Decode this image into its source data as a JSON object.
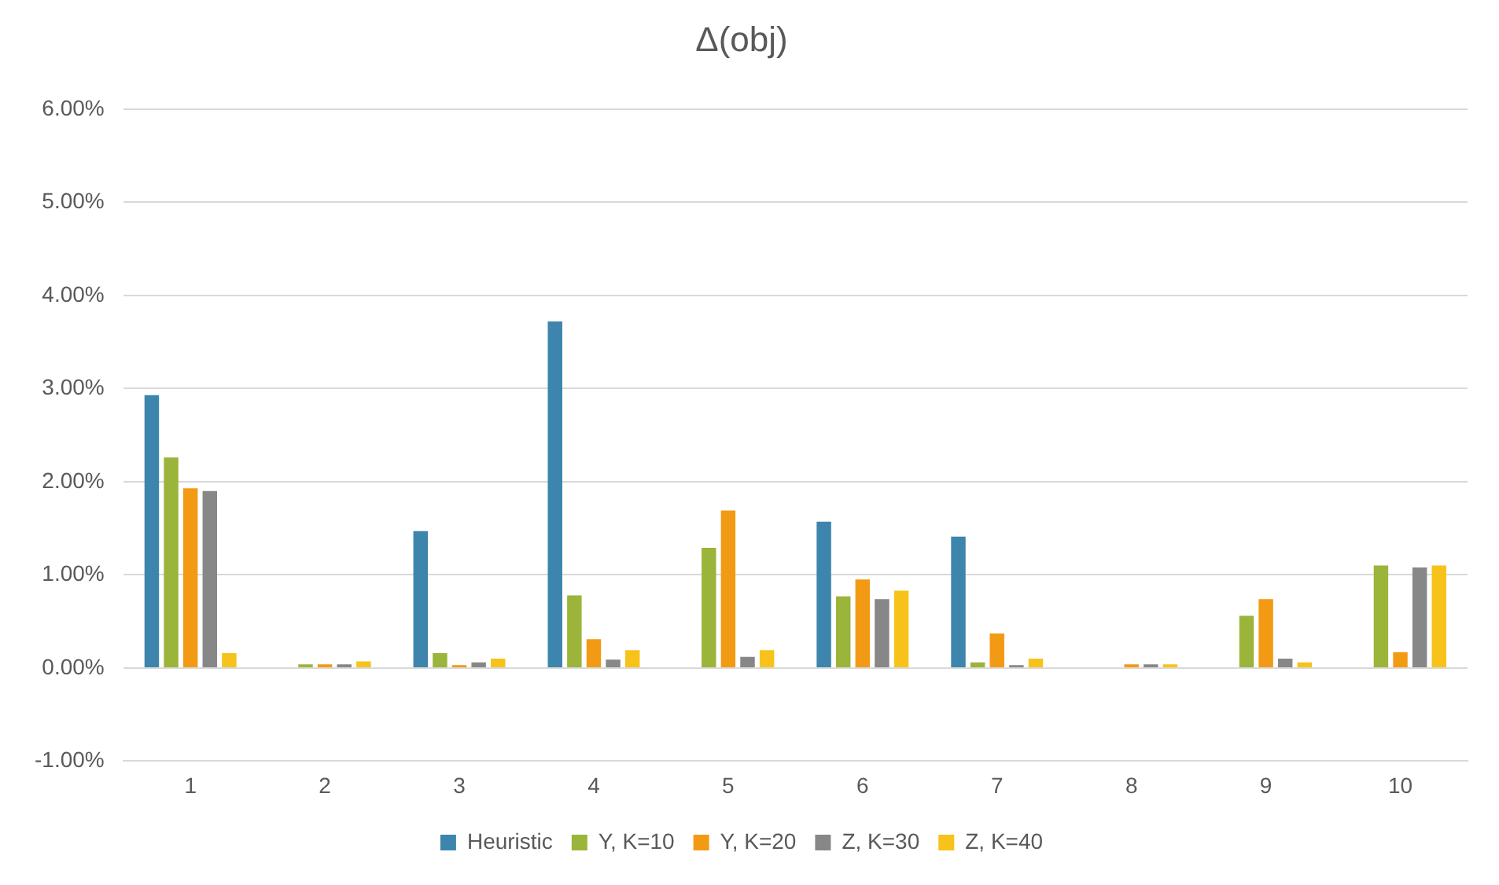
{
  "chart_data": {
    "type": "bar",
    "title": "Δ(obj)",
    "categories": [
      "1",
      "2",
      "3",
      "4",
      "5",
      "6",
      "7",
      "8",
      "9",
      "10"
    ],
    "series": [
      {
        "name": "Heuristic",
        "color": "#3d85ad",
        "values": [
          2.93,
          0,
          1.47,
          3.72,
          0,
          1.57,
          1.41,
          0,
          0,
          0
        ]
      },
      {
        "name": "Y, K=10",
        "color": "#9bb43a",
        "values": [
          2.26,
          0.04,
          0.16,
          0.78,
          1.29,
          0.77,
          0.06,
          0,
          0.56,
          1.1
        ]
      },
      {
        "name": "Y, K=20",
        "color": "#f39a14",
        "values": [
          1.93,
          0.04,
          0.03,
          0.31,
          1.69,
          0.95,
          0.37,
          0.04,
          0.74,
          0.17
        ]
      },
      {
        "name": "Z, K=30",
        "color": "#878787",
        "values": [
          1.9,
          0.04,
          0.06,
          0.09,
          0.12,
          0.74,
          0.03,
          0.04,
          0.1,
          1.08
        ]
      },
      {
        "name": "Z, K=40",
        "color": "#f7c31a",
        "values": [
          0.16,
          0.07,
          0.1,
          0.19,
          0.19,
          0.83,
          0.1,
          0.04,
          0.06,
          1.1
        ]
      }
    ],
    "ylim": [
      -1,
      6
    ],
    "yticks": [
      {
        "value": -1,
        "label": "-1.00%"
      },
      {
        "value": 0,
        "label": "0.00%"
      },
      {
        "value": 1,
        "label": "1.00%"
      },
      {
        "value": 2,
        "label": "2.00%"
      },
      {
        "value": 3,
        "label": "3.00%"
      },
      {
        "value": 4,
        "label": "4.00%"
      },
      {
        "value": 5,
        "label": "5.00%"
      },
      {
        "value": 6,
        "label": "6.00%"
      }
    ],
    "grid": "y",
    "legend": "bottom"
  }
}
